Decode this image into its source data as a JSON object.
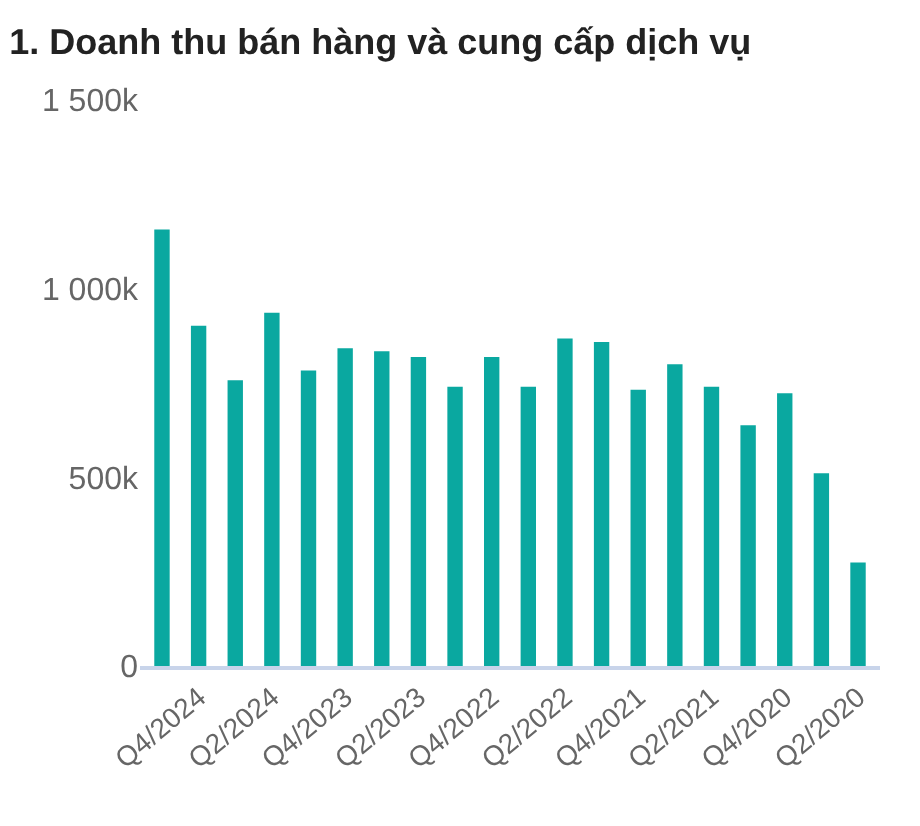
{
  "chart_data": {
    "type": "bar",
    "title": "1. Doanh thu bán hàng và cung cấp dịch vụ",
    "categories": [
      null,
      "Q4/2024",
      null,
      "Q2/2024",
      null,
      "Q4/2023",
      null,
      "Q2/2023",
      null,
      "Q4/2022",
      null,
      "Q2/2022",
      null,
      "Q4/2021",
      null,
      "Q2/2021",
      null,
      "Q4/2020",
      null,
      "Q2/2020"
    ],
    "values": [
      1157000,
      902000,
      757000,
      936000,
      783000,
      842000,
      834000,
      819000,
      740000,
      819000,
      740000,
      868000,
      859000,
      732000,
      800000,
      740000,
      638000,
      723000,
      511000,
      274000
    ],
    "color": "#0aa8a0",
    "ylim": [
      0,
      1500000
    ],
    "yticks": [
      {
        "value": 0,
        "label": "0"
      },
      {
        "value": 500000,
        "label": "500k"
      },
      {
        "value": 1000000,
        "label": "1 000k"
      },
      {
        "value": 1500000,
        "label": "1 500k"
      }
    ]
  }
}
